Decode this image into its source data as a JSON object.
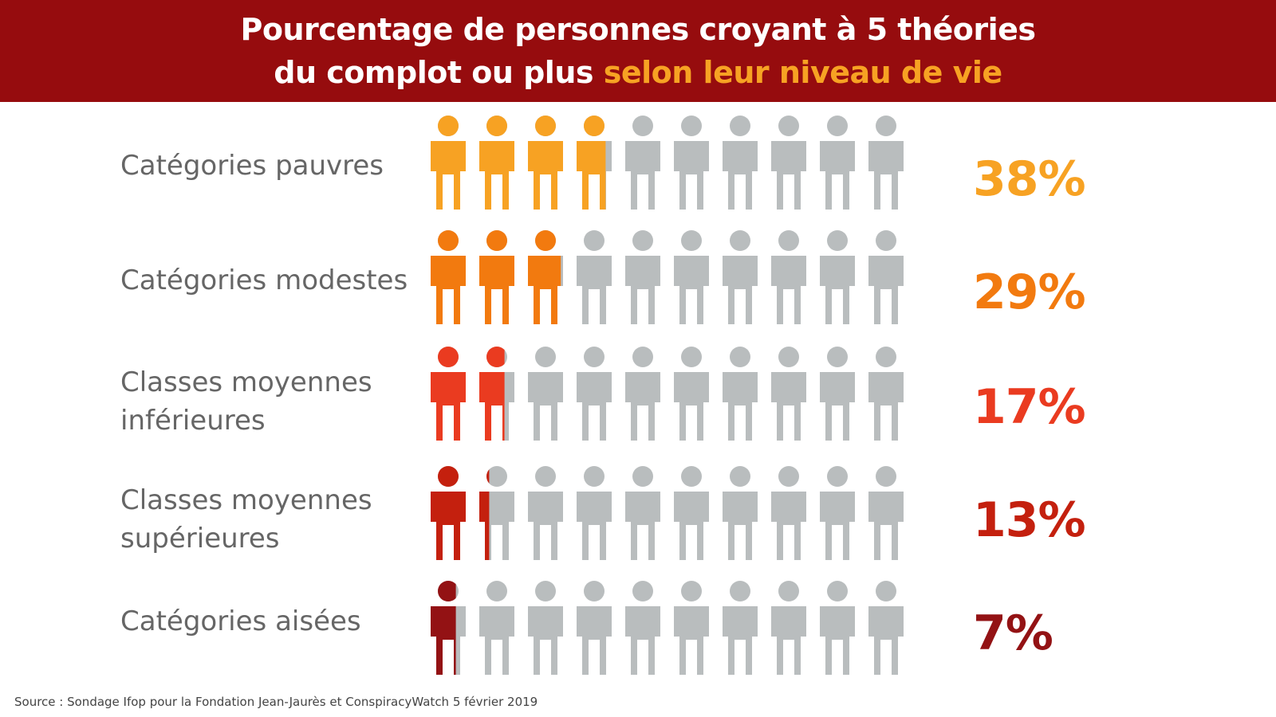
{
  "header": {
    "title_line1": "Pourcentage de personnes croyant à 5 théories",
    "title_line2_start": "du complot ou plus ",
    "title_line2_highlight": "selon leur niveau de vie"
  },
  "colors": {
    "header_bg": "#960c0e",
    "highlight": "#f7a223",
    "inactive_person": "#b9bdbe",
    "label_text": "#666666"
  },
  "chart_data": {
    "type": "pictograph",
    "title": "Pourcentage de personnes croyant à 5 théories du complot ou plus selon leur niveau de vie",
    "units_per_row": 10,
    "categories": [
      "Catégories pauvres",
      "Catégories modestes",
      "Classes moyennes inférieures",
      "Classes moyennes supérieures",
      "Catégories aisées"
    ],
    "values": [
      38,
      29,
      17,
      13,
      7
    ],
    "value_labels": [
      "38%",
      "29%",
      "17%",
      "13%",
      "7%"
    ],
    "series_colors": [
      "#f7a223",
      "#f27a0f",
      "#ea3b20",
      "#c4200e",
      "#931214"
    ]
  },
  "rows": [
    {
      "label": "Catégories pauvres"
    },
    {
      "label": "Catégories modestes"
    },
    {
      "label": "Classes moyennes\ninférieures"
    },
    {
      "label": "Classes moyennes\nsupérieures"
    },
    {
      "label": "Catégories aisées"
    }
  ],
  "footer": {
    "source": "Source : Sondage Ifop pour la Fondation Jean-Jaurès et ConspiracyWatch 5 février 2019"
  }
}
